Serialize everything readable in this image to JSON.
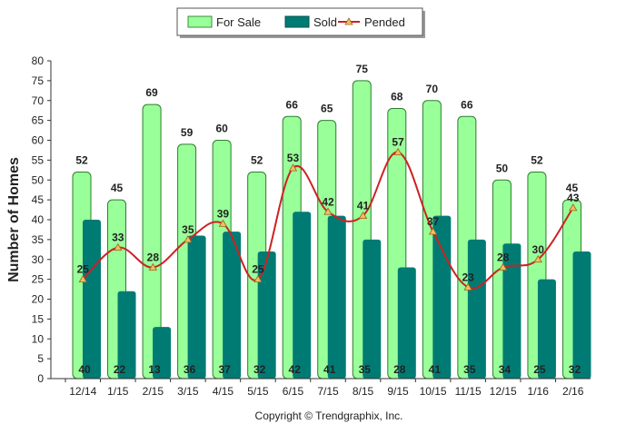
{
  "chart_data": {
    "type": "bar",
    "ylabel": "Number of Homes",
    "xlabel": "",
    "ylim": [
      0,
      80
    ],
    "ytick_step": 5,
    "categories": [
      "12/14",
      "1/15",
      "2/15",
      "3/15",
      "4/15",
      "5/15",
      "6/15",
      "7/15",
      "8/15",
      "9/15",
      "10/15",
      "11/15",
      "12/15",
      "1/16",
      "2/16"
    ],
    "series": [
      {
        "name": "For Sale",
        "kind": "bar",
        "color": "#99ff99",
        "values": [
          52,
          45,
          69,
          59,
          60,
          52,
          66,
          65,
          75,
          68,
          70,
          66,
          50,
          52,
          45
        ]
      },
      {
        "name": "Sold",
        "kind": "bar",
        "color": "#007b74",
        "values": [
          40,
          22,
          13,
          36,
          37,
          32,
          42,
          41,
          35,
          28,
          41,
          35,
          34,
          25,
          32
        ]
      },
      {
        "name": "Pended",
        "kind": "line",
        "color": "#cc2222",
        "values": [
          25,
          33,
          28,
          35,
          39,
          25,
          53,
          42,
          41,
          57,
          37,
          23,
          28,
          30,
          43
        ]
      }
    ],
    "legend_position": "top",
    "grid": false
  },
  "footer": {
    "copyright": "Copyright © Trendgraphix, Inc."
  }
}
